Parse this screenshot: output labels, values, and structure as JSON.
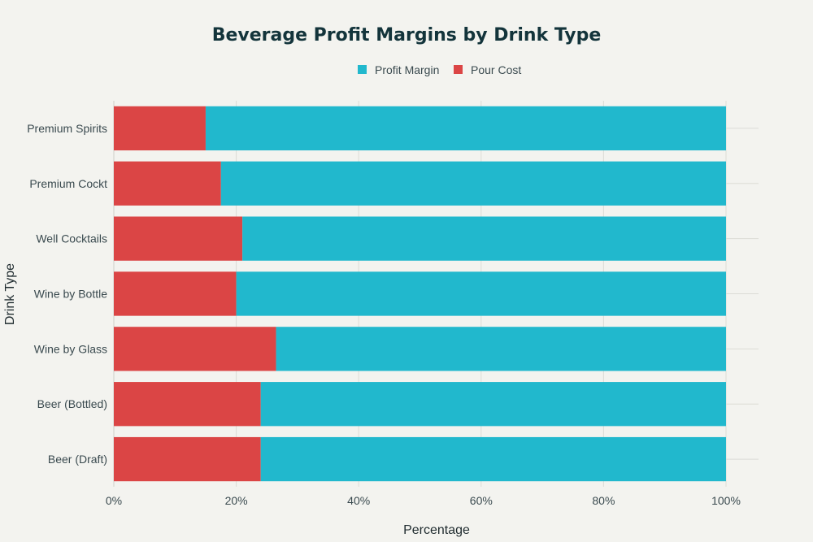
{
  "chart_data": {
    "type": "bar",
    "orientation": "horizontal",
    "stacked": true,
    "title": "Beverage Profit Margins by Drink Type",
    "xlabel": "Percentage",
    "ylabel": "Drink Type",
    "xlim": [
      0,
      100
    ],
    "x_ticks": [
      "0%",
      "20%",
      "40%",
      "60%",
      "80%",
      "100%"
    ],
    "grid": true,
    "legend_position": "top-center",
    "categories": [
      "Premium Spirits",
      "Premium Cockt",
      "Well Cocktails",
      "Wine by Bottle",
      "Wine by Glass",
      "Beer (Bottled)",
      "Beer (Draft)"
    ],
    "series": [
      {
        "name": "Pour Cost",
        "color": "#db4545",
        "values": [
          15,
          17.5,
          21,
          20,
          26.5,
          24,
          24
        ]
      },
      {
        "name": "Profit Margin",
        "color": "#21b8cd",
        "values": [
          85,
          82.5,
          79,
          80,
          73.5,
          76,
          76
        ]
      }
    ],
    "legend": [
      {
        "name": "Profit Margin",
        "color": "#21b8cd"
      },
      {
        "name": "Pour Cost",
        "color": "#db4545"
      }
    ]
  }
}
